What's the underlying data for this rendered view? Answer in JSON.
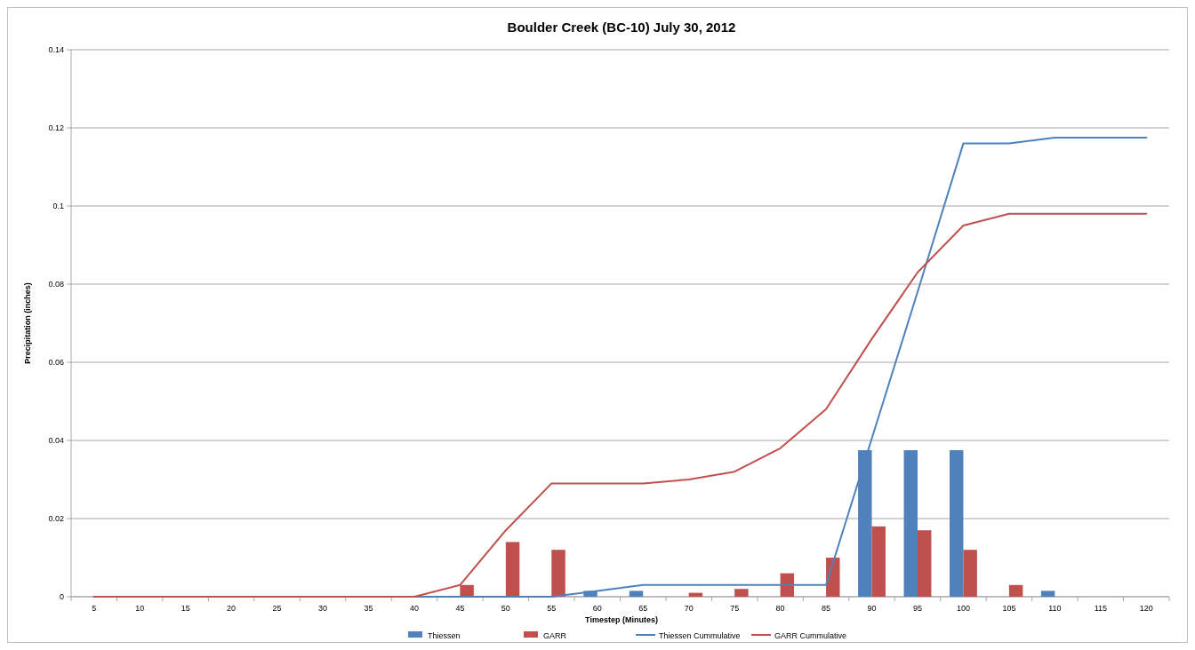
{
  "chart_data": {
    "type": "bar",
    "title": "Boulder Creek (BC-10) July 30, 2012",
    "xlabel": "Timestep (Minutes)",
    "ylabel": "Precipitation (inches)",
    "categories": [
      "5",
      "10",
      "15",
      "20",
      "25",
      "30",
      "35",
      "40",
      "45",
      "50",
      "55",
      "60",
      "65",
      "70",
      "75",
      "80",
      "85",
      "90",
      "95",
      "100",
      "105",
      "110",
      "115",
      "120"
    ],
    "series": [
      {
        "name": "Thiessen",
        "color": "#4f81bd",
        "values": [
          0,
          0,
          0,
          0,
          0,
          0,
          0,
          0,
          0,
          0,
          0,
          0.0015,
          0.0015,
          0,
          0,
          0,
          0,
          0.0375,
          0.0375,
          0.0375,
          0,
          0.0015,
          0,
          0
        ]
      },
      {
        "name": "GARR",
        "color": "#c0504d",
        "values": [
          0,
          0,
          0,
          0,
          0,
          0,
          0,
          0,
          0.003,
          0.014,
          0.012,
          0,
          0,
          0.001,
          0.002,
          0.006,
          0.01,
          0.018,
          0.017,
          0.012,
          0.003,
          0,
          0,
          0
        ]
      },
      {
        "name": "Thiessen Cummulative",
        "type": "line",
        "color": "#4f81bd",
        "values": [
          null,
          null,
          null,
          null,
          null,
          null,
          null,
          0,
          0,
          0,
          0,
          0.0015,
          0.003,
          0.003,
          0.003,
          0.003,
          0.003,
          0.0405,
          0.078,
          0.116,
          0.116,
          0.1175,
          0.1175,
          0.1175
        ]
      },
      {
        "name": "GARR Cummulative",
        "type": "line",
        "color": "#c0504d",
        "values": [
          0,
          0,
          0,
          0,
          0,
          0,
          0,
          0,
          0.003,
          0.017,
          0.029,
          0.029,
          0.029,
          0.03,
          0.032,
          0.038,
          0.048,
          0.066,
          0.083,
          0.095,
          0.098,
          0.098,
          0.098,
          0.098
        ]
      }
    ],
    "ylim": [
      0,
      0.14
    ],
    "yticks": [
      0,
      0.02,
      0.04,
      0.06,
      0.08,
      0.1,
      0.12,
      0.14
    ],
    "grid": "y",
    "legend": "bottom"
  }
}
